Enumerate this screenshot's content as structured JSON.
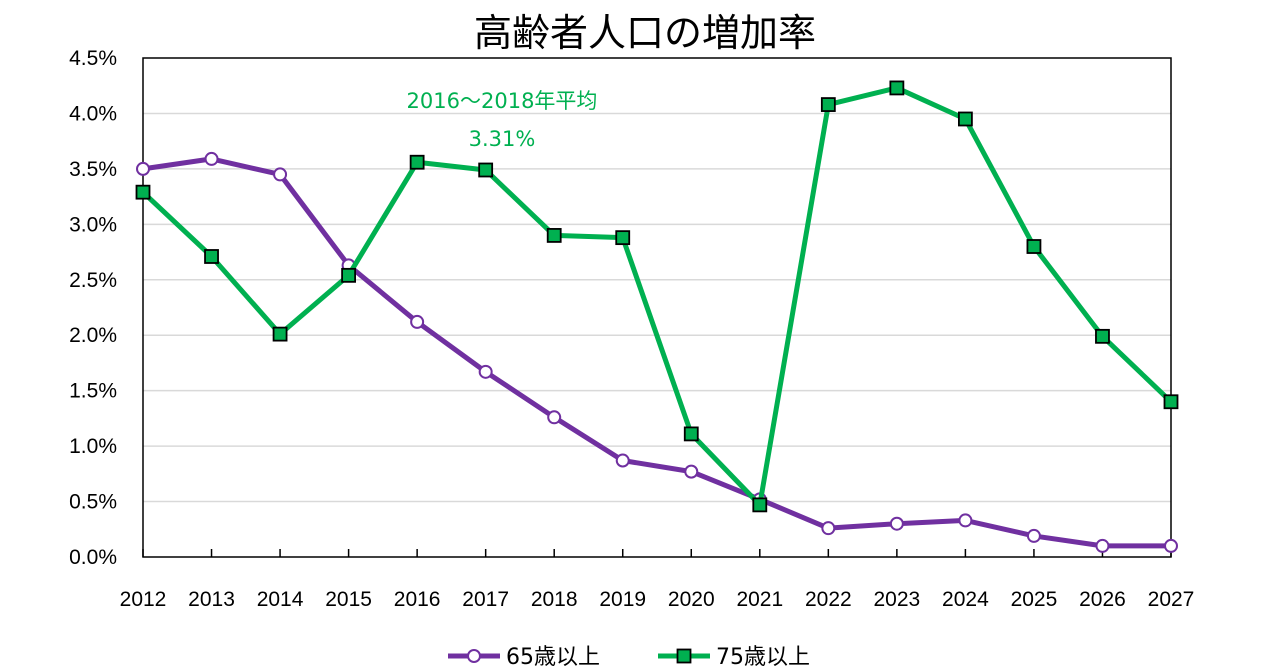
{
  "chart_data": {
    "type": "line",
    "title": "高齢者人口の増加率",
    "categories": [
      "2012",
      "2013",
      "2014",
      "2015",
      "2016",
      "2017",
      "2018",
      "2019",
      "2020",
      "2021",
      "2022",
      "2023",
      "2024",
      "2025",
      "2026",
      "2027"
    ],
    "series": [
      {
        "name": "65歳以上",
        "color": "#7030a0",
        "marker": "open-circle",
        "values": [
          3.5,
          3.59,
          3.45,
          2.63,
          2.12,
          1.67,
          1.26,
          0.87,
          0.77,
          0.52,
          0.26,
          0.3,
          0.33,
          0.19,
          0.1,
          0.1
        ]
      },
      {
        "name": "75歳以上",
        "color": "#00b050",
        "marker": "filled-square",
        "values": [
          3.29,
          2.71,
          2.01,
          2.54,
          3.56,
          3.49,
          2.9,
          2.88,
          1.11,
          0.47,
          4.08,
          4.23,
          3.95,
          2.8,
          1.99,
          1.4
        ]
      }
    ],
    "yticks": [
      "0.0%",
      "0.5%",
      "1.0%",
      "1.5%",
      "2.0%",
      "2.5%",
      "3.0%",
      "3.5%",
      "4.0%",
      "4.5%"
    ],
    "ylim": [
      0,
      4.5
    ],
    "grid": true,
    "legend_position": "bottom",
    "annotation": {
      "line1": "2016～2018年平均",
      "line2": "3.31%",
      "color": "#00b050"
    }
  }
}
